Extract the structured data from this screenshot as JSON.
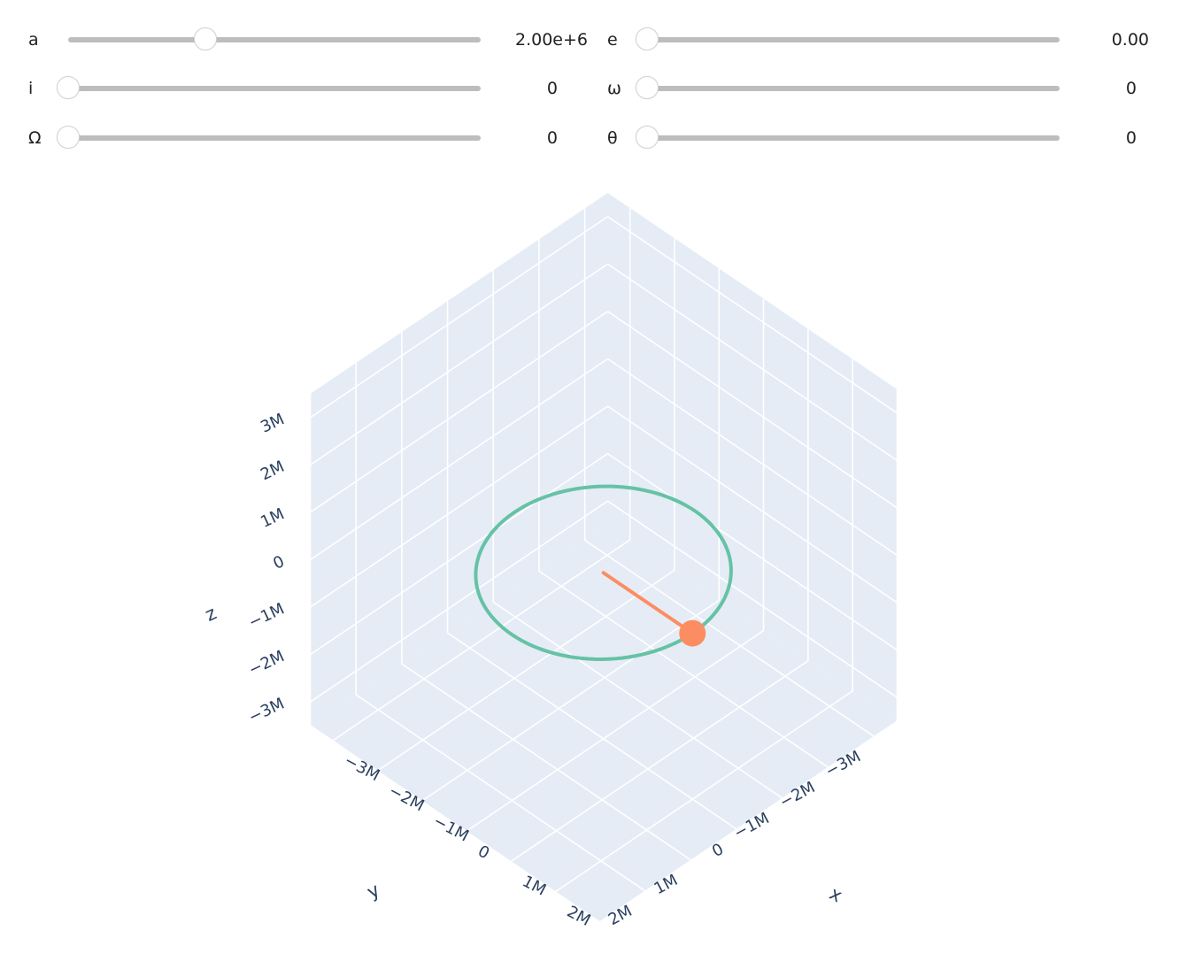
{
  "sliders": [
    {
      "id": "a",
      "label": "a",
      "value": "2.00e+6",
      "fraction": 0.34
    },
    {
      "id": "e",
      "label": "e",
      "value": "0.00",
      "fraction": 0.0
    },
    {
      "id": "i",
      "label": "i",
      "value": "0",
      "fraction": 0.0
    },
    {
      "id": "omega",
      "label": "ω",
      "value": "0",
      "fraction": 0.0
    },
    {
      "id": "raan",
      "label": "Ω",
      "value": "0",
      "fraction": 0.0
    },
    {
      "id": "theta",
      "label": "θ",
      "value": "0",
      "fraction": 0.0
    }
  ],
  "chart_data": {
    "type": "scatter3d",
    "axes": {
      "x": {
        "title": "x",
        "range": [
          -3500000,
          3000000
        ],
        "ticks": [
          "−3M",
          "−2M",
          "−1M",
          "0",
          "1M",
          "2M"
        ]
      },
      "y": {
        "title": "y",
        "range": [
          -3500000,
          3000000
        ],
        "ticks": [
          "−3M",
          "−2M",
          "−1M",
          "0",
          "1M",
          "2M"
        ]
      },
      "z": {
        "title": "z",
        "range": [
          -3500000,
          3500000
        ],
        "ticks": [
          "−3M",
          "−2M",
          "−1M",
          "0",
          "1M",
          "2M",
          "3M"
        ]
      }
    },
    "series": [
      {
        "kind": "orbit",
        "color": "#66c2a5",
        "radius": 2000000
      },
      {
        "kind": "radius-vector",
        "color": "#fc8d62",
        "from": [
          0,
          0,
          0
        ],
        "to": [
          2000000,
          0,
          0
        ]
      },
      {
        "kind": "body",
        "color": "#fc8d62",
        "position": [
          2000000,
          0,
          0
        ]
      }
    ],
    "background": "#e5ecf6",
    "grid_color": "#ffffff"
  }
}
